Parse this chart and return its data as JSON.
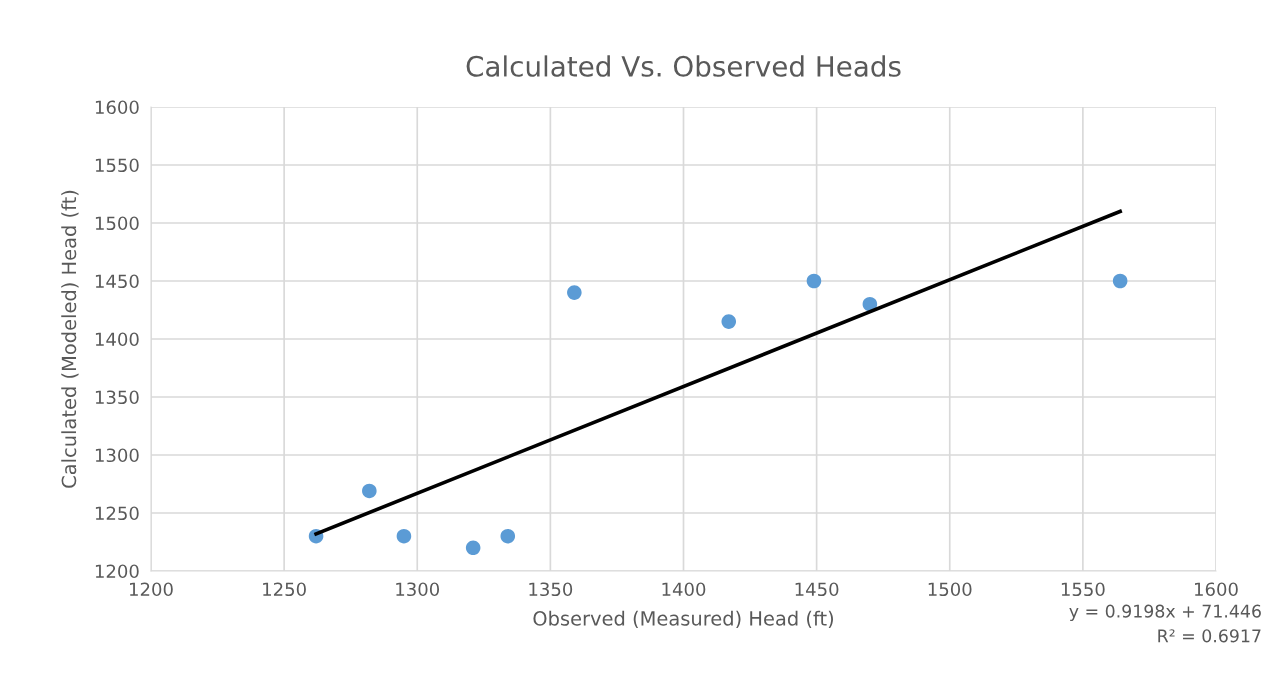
{
  "chart_data": {
    "type": "scatter",
    "title": "Calculated Vs. Observed Heads",
    "xlabel": "Observed (Measured) Head (ft)",
    "ylabel": "Calculated (Modeled) Head (ft)",
    "xlim": [
      1200,
      1600
    ],
    "xticks": [
      1200,
      1250,
      1300,
      1350,
      1400,
      1450,
      1500,
      1550,
      1600
    ],
    "ylim": [
      1200,
      1600
    ],
    "yticks": [
      1200,
      1250,
      1300,
      1350,
      1400,
      1450,
      1500,
      1550,
      1600
    ],
    "grid": true,
    "legend": false,
    "series": [
      {
        "color": "#5b9bd5",
        "marker": "circle",
        "x": [
          1262,
          1282,
          1295,
          1321,
          1334,
          1359,
          1417,
          1449,
          1470,
          1564
        ],
        "values": [
          1230,
          1269,
          1230,
          1220,
          1230,
          1440,
          1415,
          1450,
          1430,
          1450
        ]
      },
      {
        "type": "line",
        "color": "#000000",
        "x": [
          1262,
          1564
        ],
        "values": [
          1232,
          1510
        ]
      }
    ],
    "annotations": [
      "y = 0.9198x + 71.446\nR² = 0.6917"
    ]
  }
}
